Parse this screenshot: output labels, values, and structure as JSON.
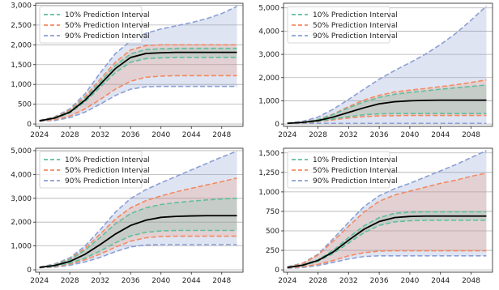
{
  "chart_data": [
    {
      "type": "line",
      "title": "",
      "xlabel": "",
      "ylabel": "",
      "xlim": [
        2023.5,
        2050.8
      ],
      "ylim": [
        -60,
        3050
      ],
      "xticks": [
        2024,
        2028,
        2032,
        2036,
        2040,
        2044,
        2048
      ],
      "xtick_labels": [
        "2024",
        "2028",
        "2032",
        "2036",
        "2040",
        "2044",
        "2048"
      ],
      "yticks": [
        0,
        500,
        1000,
        1500,
        2000,
        2500,
        3000
      ],
      "ytick_labels": [
        "0",
        "500",
        "1,000",
        "1,500",
        "2,000",
        "2,500",
        "3,000"
      ],
      "grid": "y",
      "legend_position": "top-left",
      "x": [
        2024,
        2026,
        2028,
        2030,
        2032,
        2034,
        2036,
        2038,
        2040,
        2042,
        2044,
        2046,
        2048,
        2050
      ],
      "median": [
        80,
        150,
        300,
        600,
        1000,
        1400,
        1680,
        1780,
        1800,
        1810,
        1810,
        1810,
        1810,
        1810
      ],
      "series": [
        {
          "name": "10% Prediction Interval",
          "color": "#5fbf9f",
          "lower": [
            80,
            140,
            280,
            560,
            930,
            1300,
            1560,
            1650,
            1670,
            1680,
            1680,
            1680,
            1680,
            1680
          ],
          "upper": [
            80,
            160,
            320,
            640,
            1060,
            1480,
            1770,
            1880,
            1900,
            1910,
            1910,
            1910,
            1910,
            1910
          ]
        },
        {
          "name": "50% Prediction Interval",
          "color": "#f28a60",
          "lower": [
            75,
            110,
            200,
            380,
            620,
            880,
            1080,
            1180,
            1210,
            1220,
            1220,
            1220,
            1220,
            1220
          ],
          "upper": [
            85,
            170,
            350,
            690,
            1130,
            1560,
            1870,
            1980,
            2000,
            2000,
            2000,
            2000,
            2000,
            2000
          ]
        },
        {
          "name": "90% Prediction Interval",
          "color": "#8b9fd4",
          "lower": [
            70,
            90,
            160,
            300,
            500,
            720,
            880,
            940,
            950,
            950,
            950,
            950,
            950,
            950
          ],
          "upper": [
            90,
            180,
            380,
            760,
            1290,
            1780,
            2100,
            2290,
            2400,
            2480,
            2560,
            2660,
            2790,
            2970
          ]
        }
      ]
    },
    {
      "type": "line",
      "title": "",
      "xlabel": "",
      "ylabel": "",
      "xlim": [
        2023.5,
        2050.8
      ],
      "ylim": [
        -100,
        5200
      ],
      "xticks": [
        2024,
        2028,
        2032,
        2036,
        2040,
        2044,
        2048
      ],
      "xtick_labels": [
        "2024",
        "2028",
        "2032",
        "2036",
        "2040",
        "2044",
        "2048"
      ],
      "yticks": [
        0,
        1000,
        2000,
        3000,
        4000,
        5000
      ],
      "ytick_labels": [
        "0",
        "1,000",
        "2,000",
        "3,000",
        "4,000",
        "5,000"
      ],
      "grid": "y",
      "legend_position": "top-left",
      "x": [
        2024,
        2026,
        2028,
        2030,
        2032,
        2034,
        2036,
        2038,
        2040,
        2042,
        2044,
        2046,
        2048,
        2050
      ],
      "median": [
        30,
        70,
        150,
        300,
        500,
        700,
        870,
        960,
        1000,
        1020,
        1030,
        1030,
        1030,
        1030
      ],
      "series": [
        {
          "name": "10% Prediction Interval",
          "color": "#5fbf9f",
          "lower": [
            28,
            60,
            120,
            220,
            320,
            400,
            440,
            450,
            450,
            450,
            450,
            450,
            450,
            450
          ],
          "upper": [
            32,
            80,
            190,
            410,
            700,
            950,
            1150,
            1280,
            1360,
            1430,
            1500,
            1560,
            1620,
            1680
          ]
        },
        {
          "name": "50% Prediction Interval",
          "color": "#f28a60",
          "lower": [
            25,
            50,
            100,
            180,
            260,
            320,
            350,
            360,
            370,
            370,
            370,
            370,
            370,
            370
          ],
          "upper": [
            35,
            90,
            200,
            430,
            750,
            1030,
            1240,
            1380,
            1460,
            1530,
            1610,
            1690,
            1790,
            1900
          ]
        },
        {
          "name": "90% Prediction Interval",
          "color": "#8b9fd4",
          "lower": [
            20,
            25,
            30,
            30,
            30,
            30,
            30,
            30,
            30,
            30,
            30,
            30,
            30,
            30
          ],
          "upper": [
            40,
            120,
            300,
            640,
            1060,
            1500,
            1930,
            2300,
            2640,
            3000,
            3420,
            3900,
            4470,
            5080
          ]
        }
      ]
    },
    {
      "type": "line",
      "title": "",
      "xlabel": "",
      "ylabel": "",
      "xlim": [
        2023.5,
        2050.8
      ],
      "ylim": [
        -100,
        5100
      ],
      "xticks": [
        2024,
        2028,
        2032,
        2036,
        2040,
        2044,
        2048
      ],
      "xtick_labels": [
        "2024",
        "2028",
        "2032",
        "2036",
        "2040",
        "2044",
        "2048"
      ],
      "yticks": [
        0,
        1000,
        2000,
        3000,
        4000,
        5000
      ],
      "ytick_labels": [
        "0",
        "1,000",
        "2,000",
        "3,000",
        "4,000",
        "5,000"
      ],
      "grid": "y",
      "legend_position": "top-left",
      "x": [
        2024,
        2026,
        2028,
        2030,
        2032,
        2034,
        2036,
        2038,
        2040,
        2042,
        2044,
        2046,
        2048,
        2050
      ],
      "median": [
        100,
        180,
        350,
        650,
        1060,
        1500,
        1860,
        2080,
        2200,
        2240,
        2260,
        2270,
        2270,
        2270
      ],
      "series": [
        {
          "name": "10% Prediction Interval",
          "color": "#5fbf9f",
          "lower": [
            95,
            150,
            280,
            490,
            790,
            1130,
            1420,
            1570,
            1630,
            1650,
            1650,
            1650,
            1650,
            1650
          ],
          "upper": [
            105,
            210,
            420,
            820,
            1360,
            1930,
            2360,
            2600,
            2740,
            2820,
            2880,
            2930,
            2970,
            3000
          ]
        },
        {
          "name": "50% Prediction Interval",
          "color": "#f28a60",
          "lower": [
            90,
            130,
            240,
            420,
            660,
            950,
            1200,
            1340,
            1400,
            1410,
            1410,
            1410,
            1410,
            1410
          ],
          "upper": [
            110,
            220,
            450,
            900,
            1500,
            2130,
            2600,
            2900,
            3100,
            3270,
            3420,
            3560,
            3700,
            3850
          ]
        },
        {
          "name": "90% Prediction Interval",
          "color": "#8b9fd4",
          "lower": [
            85,
            110,
            190,
            330,
            520,
            760,
            960,
            1040,
            1060,
            1060,
            1060,
            1060,
            1060,
            1060
          ],
          "upper": [
            115,
            240,
            500,
            1000,
            1680,
            2420,
            2990,
            3360,
            3650,
            3920,
            4190,
            4460,
            4730,
            4980
          ]
        }
      ]
    },
    {
      "type": "line",
      "title": "",
      "xlabel": "",
      "ylabel": "",
      "xlim": [
        2023.5,
        2050.8
      ],
      "ylim": [
        -30,
        1560
      ],
      "xticks": [
        2024,
        2028,
        2032,
        2036,
        2040,
        2044,
        2048
      ],
      "xtick_labels": [
        "2024",
        "2028",
        "2032",
        "2036",
        "2040",
        "2044",
        "2048"
      ],
      "yticks": [
        0,
        250,
        500,
        750,
        1000,
        1250,
        1500
      ],
      "ytick_labels": [
        "0",
        "250",
        "500",
        "750",
        "1,000",
        "1,250",
        "1,500"
      ],
      "grid": "y",
      "legend_position": "top-left",
      "x": [
        2024,
        2026,
        2028,
        2030,
        2032,
        2034,
        2036,
        2038,
        2040,
        2042,
        2044,
        2046,
        2048,
        2050
      ],
      "median": [
        30,
        60,
        120,
        230,
        380,
        520,
        620,
        670,
        685,
        690,
        690,
        690,
        690,
        690
      ],
      "series": [
        {
          "name": "10% Prediction Interval",
          "color": "#5fbf9f",
          "lower": [
            28,
            55,
            110,
            210,
            345,
            475,
            570,
            615,
            630,
            635,
            635,
            635,
            635,
            635
          ],
          "upper": [
            32,
            65,
            130,
            250,
            415,
            565,
            670,
            725,
            740,
            745,
            745,
            745,
            745,
            745
          ]
        },
        {
          "name": "50% Prediction Interval",
          "color": "#f28a60",
          "lower": [
            25,
            40,
            70,
            120,
            180,
            220,
            240,
            245,
            245,
            245,
            245,
            245,
            245,
            245
          ],
          "upper": [
            35,
            80,
            190,
            370,
            560,
            740,
            880,
            960,
            1010,
            1060,
            1110,
            1150,
            1200,
            1240
          ]
        },
        {
          "name": "90% Prediction Interval",
          "color": "#8b9fd4",
          "lower": [
            20,
            30,
            55,
            95,
            140,
            170,
            180,
            180,
            180,
            180,
            180,
            180,
            180,
            180
          ],
          "upper": [
            40,
            85,
            200,
            400,
            610,
            810,
            950,
            1040,
            1110,
            1190,
            1270,
            1350,
            1440,
            1530
          ]
        }
      ]
    }
  ]
}
